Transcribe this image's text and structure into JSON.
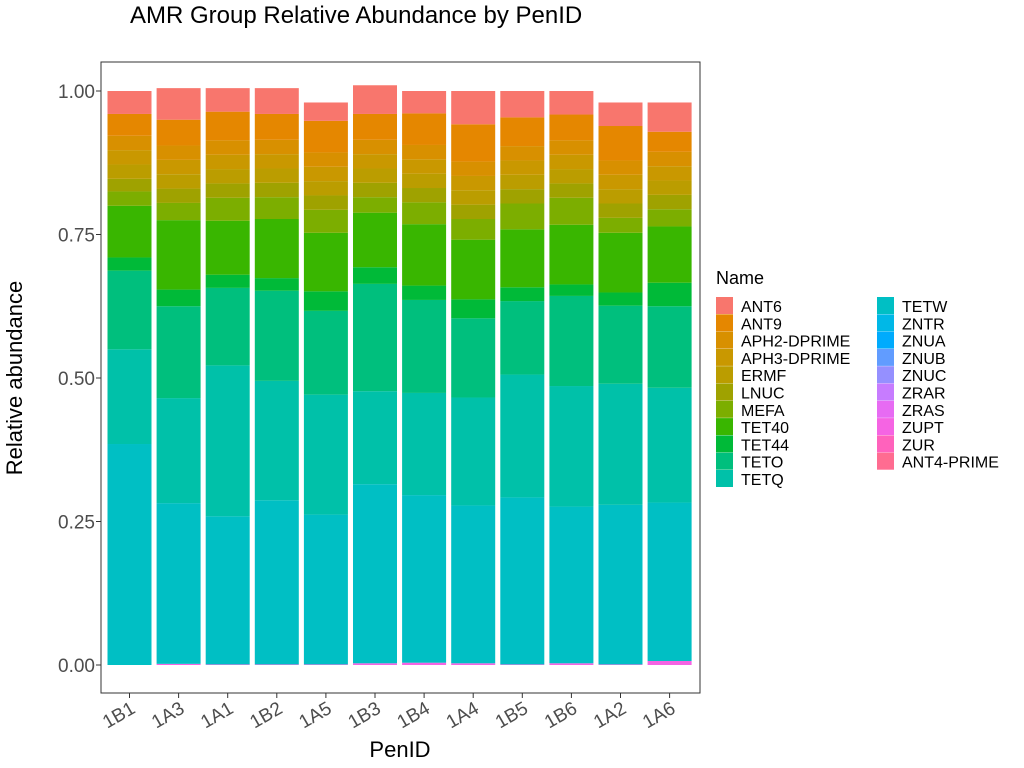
{
  "chart_data": {
    "type": "bar",
    "stacked": true,
    "title": "AMR Group Relative Abundance by PenID",
    "xlabel": "PenID",
    "ylabel": "Relative abundance",
    "ylim": [
      0,
      1
    ],
    "yticks": [
      "0.00",
      "0.25",
      "0.50",
      "0.75",
      "1.00"
    ],
    "ytick_values": [
      0,
      0.25,
      0.5,
      0.75,
      1.0
    ],
    "categories": [
      "1B1",
      "1A3",
      "1A1",
      "1B2",
      "1A5",
      "1B3",
      "1B4",
      "1A4",
      "1B5",
      "1B6",
      "1A2",
      "1A6"
    ],
    "legend": {
      "title": "Name",
      "position": "right",
      "columns": 2
    },
    "grid": false,
    "series": [
      {
        "name": "ANT4-PRIME",
        "color": "#FF6C91",
        "values": [
          0.0,
          0.0,
          0.0,
          0.0,
          0.0,
          0.0,
          0.0,
          0.0,
          0.0,
          0.0,
          0.0,
          0.0
        ]
      },
      {
        "name": "ZUR",
        "color": "#FF62BC",
        "values": [
          0.0,
          0.0,
          0.0,
          0.0,
          0.0,
          0.0,
          0.0,
          0.0,
          0.0,
          0.0,
          0.0,
          0.0
        ]
      },
      {
        "name": "ZUPT",
        "color": "#F564E3",
        "values": [
          0.0,
          0.002,
          0.001,
          0.001,
          0.001,
          0.003,
          0.004,
          0.003,
          0.001,
          0.003,
          0.001,
          0.007
        ]
      },
      {
        "name": "ZRAS",
        "color": "#E76BF3",
        "values": [
          0.0,
          0.0,
          0.0,
          0.0,
          0.0,
          0.0,
          0.0,
          0.0,
          0.0,
          0.0,
          0.0,
          0.0
        ]
      },
      {
        "name": "ZRAR",
        "color": "#C77CFF",
        "values": [
          0.0,
          0.0,
          0.0,
          0.0,
          0.0,
          0.0,
          0.0,
          0.0,
          0.0,
          0.0,
          0.0,
          0.0
        ]
      },
      {
        "name": "ZNUC",
        "color": "#9590FF",
        "values": [
          0.0,
          0.0,
          0.0,
          0.0,
          0.0,
          0.0,
          0.0,
          0.0,
          0.0,
          0.0,
          0.0,
          0.0
        ]
      },
      {
        "name": "ZNUB",
        "color": "#619CFF",
        "values": [
          0.0,
          0.0,
          0.0,
          0.0,
          0.0,
          0.0,
          0.0,
          0.0,
          0.0,
          0.0,
          0.0,
          0.0
        ]
      },
      {
        "name": "ZNUA",
        "color": "#00ABFD",
        "values": [
          0.0,
          0.0,
          0.0,
          0.0,
          0.0,
          0.0,
          0.0,
          0.0,
          0.0,
          0.0,
          0.0,
          0.0
        ]
      },
      {
        "name": "ZNTR",
        "color": "#00B8E7",
        "values": [
          0.0,
          0.0,
          0.0,
          0.0,
          0.0,
          0.0,
          0.0,
          0.0,
          0.0,
          0.0,
          0.0,
          0.0
        ]
      },
      {
        "name": "TETW",
        "color": "#00BFC4",
        "values": [
          0.385,
          0.28,
          0.258,
          0.286,
          0.261,
          0.312,
          0.292,
          0.275,
          0.291,
          0.273,
          0.278,
          0.276
        ]
      },
      {
        "name": "TETQ",
        "color": "#00C1A9",
        "values": [
          0.165,
          0.183,
          0.263,
          0.208,
          0.209,
          0.162,
          0.178,
          0.188,
          0.214,
          0.21,
          0.211,
          0.2
        ]
      },
      {
        "name": "TETO",
        "color": "#00BF7D",
        "values": [
          0.137,
          0.16,
          0.135,
          0.157,
          0.146,
          0.187,
          0.162,
          0.138,
          0.128,
          0.157,
          0.136,
          0.142
        ]
      },
      {
        "name": "TET44",
        "color": "#00BA38",
        "values": [
          0.023,
          0.029,
          0.023,
          0.022,
          0.034,
          0.029,
          0.025,
          0.033,
          0.024,
          0.02,
          0.023,
          0.041
        ]
      },
      {
        "name": "TET40",
        "color": "#39B600",
        "values": [
          0.09,
          0.121,
          0.094,
          0.103,
          0.102,
          0.095,
          0.107,
          0.104,
          0.101,
          0.104,
          0.104,
          0.098
        ]
      },
      {
        "name": "MEFA",
        "color": "#7CAE00",
        "values": [
          0.025,
          0.03,
          0.04,
          0.038,
          0.04,
          0.027,
          0.038,
          0.036,
          0.045,
          0.047,
          0.026,
          0.03
        ]
      },
      {
        "name": "LNUC",
        "color": "#9FA200",
        "values": [
          0.022,
          0.025,
          0.025,
          0.025,
          0.025,
          0.025,
          0.025,
          0.025,
          0.025,
          0.025,
          0.025,
          0.025
        ]
      },
      {
        "name": "ERMF",
        "color": "#BB9D00",
        "values": [
          0.025,
          0.025,
          0.025,
          0.025,
          0.025,
          0.025,
          0.025,
          0.025,
          0.025,
          0.025,
          0.025,
          0.025
        ]
      },
      {
        "name": "APH3-DPRIME",
        "color": "#C99800",
        "values": [
          0.025,
          0.025,
          0.025,
          0.025,
          0.025,
          0.025,
          0.025,
          0.025,
          0.025,
          0.025,
          0.025,
          0.025
        ]
      },
      {
        "name": "APH2-DPRIME",
        "color": "#D89000",
        "values": [
          0.025,
          0.025,
          0.025,
          0.025,
          0.025,
          0.025,
          0.025,
          0.025,
          0.025,
          0.025,
          0.025,
          0.025
        ]
      },
      {
        "name": "ANT9",
        "color": "#E58700",
        "values": [
          0.038,
          0.045,
          0.05,
          0.045,
          0.055,
          0.045,
          0.055,
          0.065,
          0.05,
          0.045,
          0.06,
          0.035
        ]
      },
      {
        "name": "ANT6",
        "color": "#F8766D",
        "values": [
          0.04,
          0.055,
          0.041,
          0.045,
          0.032,
          0.05,
          0.039,
          0.058,
          0.046,
          0.041,
          0.041,
          0.051
        ]
      }
    ],
    "legend_order": [
      "ANT6",
      "ANT9",
      "APH2-DPRIME",
      "APH3-DPRIME",
      "ERMF",
      "LNUC",
      "MEFA",
      "TET40",
      "TET44",
      "TETO",
      "TETQ",
      "TETW",
      "ZNTR",
      "ZNUA",
      "ZNUB",
      "ZNUC",
      "ZRAR",
      "ZRAS",
      "ZUPT",
      "ZUR",
      "ANT4-PRIME"
    ]
  }
}
